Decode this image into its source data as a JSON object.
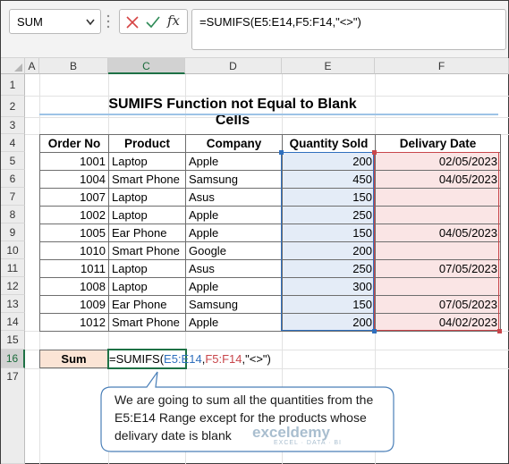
{
  "formula_bar": {
    "name_box": "SUM",
    "fx_label": "fx",
    "formula": "=SUMIFS(E5:E14,F5:F14,\"<>\")"
  },
  "columns": [
    "A",
    "B",
    "C",
    "D",
    "E",
    "F"
  ],
  "rows": [
    "1",
    "2",
    "3",
    "4",
    "5",
    "6",
    "7",
    "8",
    "9",
    "10",
    "11",
    "12",
    "13",
    "14",
    "15",
    "16",
    "17"
  ],
  "selected_column": "C",
  "selected_row": "16",
  "title": "SUMIFS Function not Equal to Blank Cells",
  "table": {
    "headers": [
      "Order No",
      "Product",
      "Company",
      "Quantity Sold",
      "Delivary Date"
    ],
    "rows": [
      [
        "1001",
        "Laptop",
        "Apple",
        "200",
        "02/05/2023"
      ],
      [
        "1004",
        "Smart Phone",
        "Samsung",
        "450",
        "04/05/2023"
      ],
      [
        "1007",
        "Laptop",
        "Asus",
        "150",
        ""
      ],
      [
        "1002",
        "Laptop",
        "Apple",
        "250",
        ""
      ],
      [
        "1005",
        "Ear Phone",
        "Apple",
        "150",
        "04/05/2023"
      ],
      [
        "1010",
        "Smart Phone",
        "Google",
        "200",
        ""
      ],
      [
        "1011",
        "Laptop",
        "Asus",
        "250",
        "07/05/2023"
      ],
      [
        "1008",
        "Laptop",
        "Apple",
        "300",
        ""
      ],
      [
        "1009",
        "Ear Phone",
        "Samsung",
        "150",
        "07/05/2023"
      ],
      [
        "1012",
        "Smart Phone",
        "Apple",
        "200",
        "04/02/2023"
      ]
    ]
  },
  "sum_label": "Sum",
  "cell_formula": {
    "prefix": "=SUMIFS(",
    "range1": "E5:E14",
    "comma1": ",",
    "range2": "F5:F14",
    "suffix": ",\"<>\")"
  },
  "callout_text": "We are going to sum all the quantities from the E5:E14 Range except for the products whose delivary date is blank",
  "watermark": {
    "name": "exceldemy",
    "tagline": "EXCEL · DATA · BI"
  },
  "colors": {
    "accent": "#1e7145",
    "range_blue": "#2f6fbd",
    "range_red": "#c8464b",
    "qty_fill": "#e4ecf7",
    "date_fill": "#fae5e5",
    "sum_fill": "#fbe4d5"
  }
}
